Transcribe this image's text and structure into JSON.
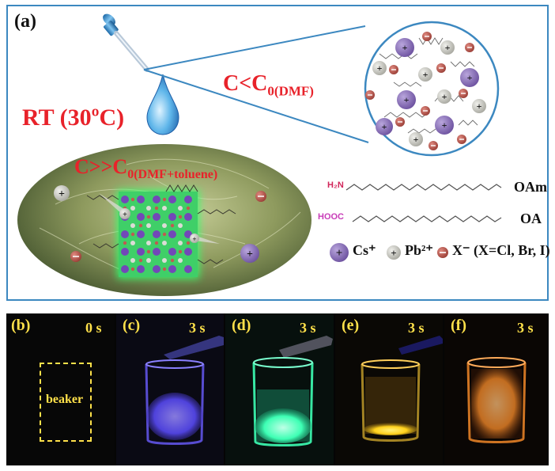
{
  "panel_a": {
    "label": "(a)",
    "rt_label": "RT (30ºC)",
    "c_dmf": {
      "main": "C<C",
      "sub": "0(DMF)"
    },
    "c_mix": {
      "main": "C>>C",
      "sub": "0(DMF+toluene)"
    },
    "oam_head": "H₂N",
    "oam_name": "OAm",
    "oa_head": "HOOC",
    "oa_name": "OA",
    "legend": {
      "cs": "Cs⁺",
      "pb": "Pb²⁺",
      "x": "X⁻ (X=Cl, Br, I)"
    },
    "colors": {
      "frame": "#3c88c0",
      "title_red": "#e8222a",
      "cs": "#8a6fb6",
      "pb": "#c8c8c2",
      "x": "#b85a50"
    }
  },
  "panels": [
    {
      "label": "(b)",
      "time": "0 s",
      "box_label": "beaker",
      "glow": "none"
    },
    {
      "label": "(c)",
      "time": "3 s",
      "glow": "blue",
      "color": "#5b4cff"
    },
    {
      "label": "(d)",
      "time": "3 s",
      "glow": "green",
      "color": "#3dffb4"
    },
    {
      "label": "(e)",
      "time": "3 s",
      "glow": "yellow",
      "color": "#ffd11c"
    },
    {
      "label": "(f)",
      "time": "3 s",
      "glow": "orange",
      "color": "#ff8f2a"
    }
  ]
}
